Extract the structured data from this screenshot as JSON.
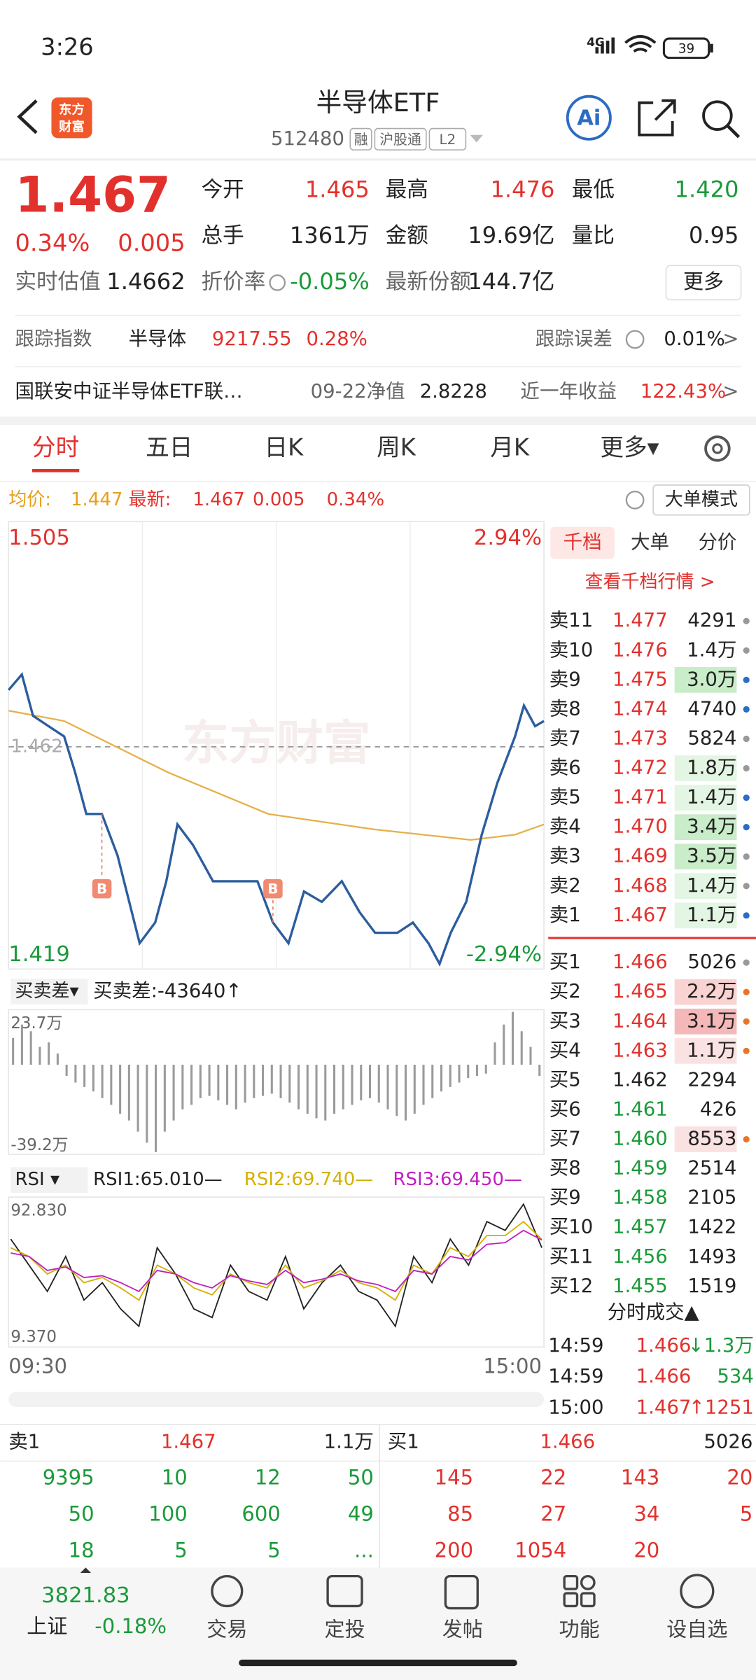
{
  "status_bar": {
    "time": "3:26",
    "network": "4G",
    "battery": "39"
  },
  "header": {
    "logo": [
      "东方",
      "财富"
    ],
    "title": "半导体ETF",
    "code": "512480",
    "tags": [
      "融",
      "沪股通",
      "L2"
    ],
    "ai": "Ai"
  },
  "quote": {
    "price": "1.467",
    "change_pct": "0.34%",
    "change": "0.005",
    "color": "#e2312d",
    "fields": [
      {
        "label": "今开",
        "value": "1.465",
        "color": "#e2312d"
      },
      {
        "label": "最高",
        "value": "1.476",
        "color": "#e2312d"
      },
      {
        "label": "最低",
        "value": "1.420",
        "color": "#1a9a3a"
      },
      {
        "label": "总手",
        "value": "1361万",
        "color": "#222222"
      },
      {
        "label": "金额",
        "value": "19.69亿",
        "color": "#222222"
      },
      {
        "label": "量比",
        "value": "0.95",
        "color": "#222222"
      },
      {
        "label": "实时估值",
        "value": "1.4662",
        "color": "#222222"
      },
      {
        "label": "折价率",
        "value": "-0.05%",
        "color": "#1a9a3a"
      },
      {
        "label": "最新份额",
        "value": "144.7亿",
        "color": "#222222"
      }
    ],
    "more_button": "更多"
  },
  "tracking": {
    "label": "跟踪指数",
    "index": "半导体",
    "points": "9217.55",
    "change": "0.28%",
    "error_label": "跟踪误差",
    "error": "0.01%",
    "arrow": ">"
  },
  "fund": {
    "name": "国联安中证半导体ETF联…",
    "nav_label": "09-22净值",
    "nav": "2.8228",
    "return_label": "近一年收益",
    "return": "122.43%",
    "arrow": ">"
  },
  "tabs": {
    "items": [
      "分时",
      "五日",
      "日K",
      "周K",
      "月K",
      "更多▾"
    ],
    "active": 0
  },
  "info_bar": {
    "items": [
      {
        "text": "均价:",
        "color": "#e6a020"
      },
      {
        "text": "1.447",
        "color": "#e6a020"
      },
      {
        "text": "最新:",
        "color": "#e2312d"
      },
      {
        "text": "1.467",
        "color": "#e2312d"
      },
      {
        "text": "0.005",
        "color": "#e2312d"
      },
      {
        "text": "0.34%",
        "color": "#e2312d"
      }
    ],
    "mode_button": "大单模式"
  },
  "price_chart": {
    "type": "line",
    "ylim": [
      1.419,
      1.505
    ],
    "yticks": [
      1.505,
      1.419
    ],
    "pct_labels": [
      "2.94%",
      "-2.94%"
    ],
    "reference": 1.462,
    "watermark": "东方财富",
    "xlim": [
      0,
      241
    ],
    "x": [
      0,
      6,
      11,
      18,
      25,
      30,
      35,
      42,
      49,
      59,
      66,
      71,
      76,
      83,
      92,
      102,
      112,
      119,
      126,
      133,
      141,
      150,
      158,
      165,
      175,
      182,
      189,
      194,
      199,
      206,
      213,
      220,
      228,
      232,
      237,
      241
    ],
    "values": [
      1.473,
      1.476,
      1.468,
      1.466,
      1.464,
      1.457,
      1.449,
      1.449,
      1.441,
      1.424,
      1.428,
      1.436,
      1.447,
      1.443,
      1.436,
      1.436,
      1.436,
      1.428,
      1.424,
      1.434,
      1.432,
      1.436,
      1.43,
      1.426,
      1.426,
      1.428,
      1.424,
      1.42,
      1.426,
      1.432,
      1.445,
      1.455,
      1.464,
      1.47,
      1.466,
      1.467
    ],
    "color": "#2b5d9e",
    "average": {
      "x": [
        0,
        25,
        72,
        117,
        165,
        208,
        228,
        241
      ],
      "values": [
        1.469,
        1.467,
        1.457,
        1.449,
        1.446,
        1.444,
        1.445,
        1.447
      ],
      "color": "#e6b04a"
    },
    "markers": [
      {
        "label": "B",
        "x": 42,
        "value": 1.449
      },
      {
        "label": "B",
        "x": 119,
        "value": 1.428
      }
    ]
  },
  "spread_chart": {
    "type": "bar",
    "selector": "买卖差▾",
    "label": "买卖差:-43640↑",
    "ylim": [
      -39.2,
      23.7
    ],
    "yticks": [
      {
        "value": 23.7,
        "label": "23.7万"
      },
      {
        "value": -39.2,
        "label": "-39.2万"
      }
    ],
    "color": "#9a9a9a",
    "values": [
      12,
      18,
      15,
      8,
      10,
      5,
      -5,
      -8,
      -10,
      -12,
      -15,
      -18,
      -22,
      -25,
      -30,
      -35,
      -39.2,
      -30,
      -25,
      -20,
      -18,
      -15,
      -14,
      -16,
      -18,
      -20,
      -17,
      -15,
      -14,
      -13,
      -15,
      -17,
      -20,
      -22,
      -24,
      -25,
      -22,
      -20,
      -18,
      -16,
      -15,
      -17,
      -20,
      -23,
      -25,
      -22,
      -18,
      -15,
      -12,
      -10,
      -8,
      -6,
      -5,
      -4,
      10,
      18,
      23.7,
      15,
      8,
      -5
    ]
  },
  "rsi_chart": {
    "type": "line",
    "selector": "RSI ▾",
    "ylim": [
      9.37,
      92.83
    ],
    "yticks": [
      {
        "value": 92.83,
        "label": "92.830"
      },
      {
        "value": 9.37,
        "label": "9.370"
      }
    ],
    "series": [
      {
        "name": "RSI1:65.010—",
        "color": "#222222",
        "values": [
          70,
          55,
          40,
          60,
          35,
          45,
          30,
          20,
          65,
          50,
          30,
          25,
          55,
          40,
          35,
          60,
          30,
          45,
          55,
          40,
          35,
          20,
          60,
          45,
          70,
          55,
          80,
          75,
          90,
          65.01
        ]
      },
      {
        "name": "RSI2:69.740—",
        "color": "#d4b000",
        "values": [
          65,
          60,
          50,
          55,
          45,
          48,
          42,
          35,
          55,
          50,
          42,
          38,
          50,
          45,
          42,
          55,
          42,
          46,
          52,
          45,
          42,
          35,
          55,
          50,
          65,
          60,
          72,
          72,
          80,
          69.74
        ]
      },
      {
        "name": "RSI3:69.450—",
        "color": "#c020c0",
        "values": [
          62,
          60,
          52,
          54,
          48,
          49,
          45,
          40,
          52,
          50,
          45,
          42,
          49,
          46,
          44,
          52,
          45,
          47,
          50,
          46,
          44,
          40,
          52,
          50,
          60,
          58,
          67,
          68,
          75,
          69.45
        ]
      }
    ]
  },
  "time_axis": [
    "09:30",
    "15:00"
  ],
  "order_book": {
    "tabs": [
      "千档",
      "大单",
      "分价"
    ],
    "link": "查看千档行情 >",
    "sell": [
      {
        "label": "卖11",
        "price": "1.477",
        "volume": "4291",
        "color": "#e2312d",
        "dot": "#999999"
      },
      {
        "label": "卖10",
        "price": "1.476",
        "volume": "1.4万",
        "color": "#e2312d",
        "dot": "#999999"
      },
      {
        "label": "卖9",
        "price": "1.475",
        "volume": "3.0万",
        "color": "#e2312d",
        "dot": "#2b6cc4",
        "bg": "#c9ecc9"
      },
      {
        "label": "卖8",
        "price": "1.474",
        "volume": "4740",
        "color": "#e2312d",
        "dot": "#2b6cc4"
      },
      {
        "label": "卖7",
        "price": "1.473",
        "volume": "5824",
        "color": "#e2312d",
        "dot": "#999999"
      },
      {
        "label": "卖6",
        "price": "1.472",
        "volume": "1.8万",
        "color": "#e2312d",
        "dot": "#999999",
        "bg": "#e3f5e3"
      },
      {
        "label": "卖5",
        "price": "1.471",
        "volume": "1.4万",
        "color": "#e2312d",
        "dot": "#2b6cc4",
        "bg": "#e3f5e3"
      },
      {
        "label": "卖4",
        "price": "1.470",
        "volume": "3.4万",
        "color": "#e2312d",
        "dot": "#2b6cc4",
        "bg": "#c9ecc9"
      },
      {
        "label": "卖3",
        "price": "1.469",
        "volume": "3.5万",
        "color": "#e2312d",
        "dot": "#999999",
        "bg": "#c9ecc9"
      },
      {
        "label": "卖2",
        "price": "1.468",
        "volume": "1.4万",
        "color": "#e2312d",
        "dot": "#999999",
        "bg": "#e3f5e3"
      },
      {
        "label": "卖1",
        "price": "1.467",
        "volume": "1.1万",
        "color": "#e2312d",
        "dot": "#2b6cc4",
        "bg": "#e3f5e3"
      }
    ],
    "buy": [
      {
        "label": "买1",
        "price": "1.466",
        "volume": "5026",
        "color": "#e2312d",
        "dot": "#999999"
      },
      {
        "label": "买2",
        "price": "1.465",
        "volume": "2.2万",
        "color": "#e2312d",
        "dot": "#e8742a",
        "bg": "#f9d2d2"
      },
      {
        "label": "买3",
        "price": "1.464",
        "volume": "3.1万",
        "color": "#e2312d",
        "dot": "#e8742a",
        "bg": "#f5b8b8"
      },
      {
        "label": "买4",
        "price": "1.463",
        "volume": "1.1万",
        "color": "#e2312d",
        "dot": "#e8742a",
        "bg": "#fbe2e2"
      },
      {
        "label": "买5",
        "price": "1.462",
        "volume": "2294",
        "color": "#222222"
      },
      {
        "label": "买6",
        "price": "1.461",
        "volume": "426",
        "color": "#1a9a3a"
      },
      {
        "label": "买7",
        "price": "1.460",
        "volume": "8553",
        "color": "#1a9a3a",
        "dot": "#e8742a",
        "bg": "#fbe2e2"
      },
      {
        "label": "买8",
        "price": "1.459",
        "volume": "2514",
        "color": "#1a9a3a"
      },
      {
        "label": "买9",
        "price": "1.458",
        "volume": "2105",
        "color": "#1a9a3a"
      },
      {
        "label": "买10",
        "price": "1.457",
        "volume": "1422",
        "color": "#1a9a3a"
      },
      {
        "label": "买11",
        "price": "1.456",
        "volume": "1493",
        "color": "#1a9a3a"
      },
      {
        "label": "买12",
        "price": "1.455",
        "volume": "1519",
        "color": "#1a9a3a"
      }
    ]
  },
  "trades_title": "分时成交▲",
  "trades": [
    {
      "time": "14:59",
      "price": "1.466",
      "volume": "↓1.3万",
      "color": "#1a9a3a"
    },
    {
      "time": "14:59",
      "price": "1.466",
      "volume": "534",
      "color": "#1a9a3a"
    },
    {
      "time": "15:00",
      "price": "1.467",
      "volume": "↑1251",
      "color": "#e2312d"
    }
  ],
  "bottom_table": {
    "left": {
      "label": "卖1",
      "price": "1.467",
      "volume": "1.1万",
      "color": "#1a9a3a",
      "rows": [
        [
          "9395",
          "10",
          "12",
          "50"
        ],
        [
          "50",
          "100",
          "600",
          "49"
        ],
        [
          "18",
          "5",
          "5",
          "..."
        ]
      ]
    },
    "right": {
      "label": "买1",
      "price": "1.466",
      "volume": "5026",
      "color": "#e2312d",
      "rows": [
        [
          "145",
          "22",
          "143",
          "20"
        ],
        [
          "85",
          "27",
          "34",
          "5"
        ],
        [
          "200",
          "1054",
          "20"
        ]
      ]
    }
  },
  "nav": {
    "index": {
      "value": "3821.83",
      "name": "上证",
      "change": "-0.18%"
    },
    "items": [
      "交易",
      "定投",
      "发帖",
      "功能",
      "设自选"
    ]
  }
}
